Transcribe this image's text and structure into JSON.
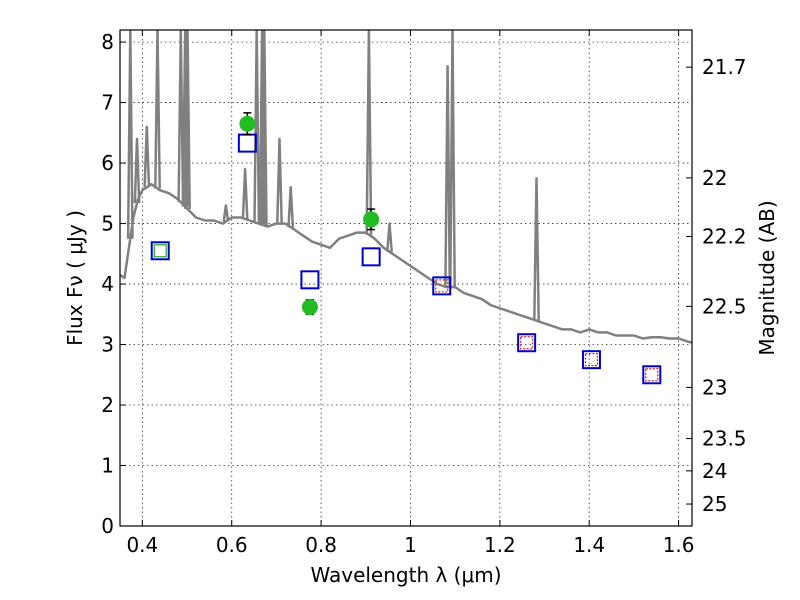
{
  "chart_data": {
    "type": "scatter",
    "xlabel": "Wavelength  λ (μm)",
    "ylabel": "Flux  Fν  ( μJy )",
    "ylabel_right": "Magnitude (AB)",
    "xlim": [
      0.35,
      1.63
    ],
    "ylim": [
      0,
      8.2
    ],
    "grid": true,
    "x_ticks": [
      "0.4",
      "0.6",
      "0.8",
      "1",
      "1.2",
      "1.4",
      "1.6"
    ],
    "y_ticks": [
      "0",
      "1",
      "2",
      "3",
      "4",
      "5",
      "6",
      "7",
      "8"
    ],
    "mag_ticks": [
      "21.7",
      "22",
      "22.2",
      "22.5",
      "23",
      "23.5",
      "24",
      "25"
    ],
    "colors": {
      "spectrum": "#808080",
      "observed": "#22bb22",
      "model_box": "#0000cc",
      "inner_green": "#22aa22",
      "inner_red": "#cc2222"
    },
    "series": [
      {
        "kind": "line",
        "x": [
          0.35,
          0.36,
          0.37,
          0.38,
          0.39,
          0.4,
          0.41,
          0.42,
          0.43,
          0.44,
          0.46,
          0.48,
          0.5,
          0.52,
          0.54,
          0.56,
          0.58,
          0.6,
          0.62,
          0.64,
          0.66,
          0.68,
          0.7,
          0.72,
          0.74,
          0.76,
          0.78,
          0.8,
          0.82,
          0.84,
          0.86,
          0.88,
          0.9,
          0.92,
          0.94,
          0.96,
          0.98,
          1.0,
          1.02,
          1.04,
          1.06,
          1.08,
          1.1,
          1.12,
          1.14,
          1.16,
          1.18,
          1.2,
          1.22,
          1.24,
          1.26,
          1.28,
          1.3,
          1.32,
          1.34,
          1.36,
          1.38,
          1.4,
          1.42,
          1.44,
          1.46,
          1.48,
          1.5,
          1.52,
          1.54,
          1.56,
          1.58,
          1.6,
          1.62,
          1.63
        ],
        "y": [
          4.15,
          4.1,
          4.6,
          5.1,
          5.4,
          5.55,
          5.6,
          5.65,
          5.6,
          5.55,
          5.5,
          5.4,
          5.25,
          5.1,
          5.05,
          5.05,
          5.0,
          5.1,
          5.1,
          5.05,
          5.0,
          4.95,
          5.0,
          5.0,
          4.9,
          4.8,
          4.7,
          4.65,
          4.6,
          4.75,
          4.8,
          4.85,
          4.85,
          4.75,
          4.6,
          4.5,
          4.4,
          4.3,
          4.2,
          4.1,
          4.0,
          3.95,
          3.95,
          3.85,
          3.8,
          3.75,
          3.65,
          3.6,
          3.55,
          3.5,
          3.45,
          3.4,
          3.35,
          3.3,
          3.25,
          3.25,
          3.2,
          3.25,
          3.2,
          3.2,
          3.15,
          3.15,
          3.15,
          3.1,
          3.12,
          3.12,
          3.1,
          3.1,
          3.05,
          3.03
        ]
      },
      {
        "kind": "emission_lines",
        "lines": [
          {
            "x": 0.373,
            "peak": 8.2
          },
          {
            "x": 0.388,
            "peak": 6.4
          },
          {
            "x": 0.41,
            "peak": 6.6
          },
          {
            "x": 0.434,
            "peak": 8.2
          },
          {
            "x": 0.486,
            "peak": 8.2
          },
          {
            "x": 0.496,
            "peak": 8.2
          },
          {
            "x": 0.501,
            "peak": 8.2
          },
          {
            "x": 0.587,
            "peak": 5.3
          },
          {
            "x": 0.63,
            "peak": 5.9
          },
          {
            "x": 0.656,
            "peak": 8.2
          },
          {
            "x": 0.668,
            "peak": 8.2
          },
          {
            "x": 0.673,
            "peak": 8.2
          },
          {
            "x": 0.707,
            "peak": 6.4
          },
          {
            "x": 0.732,
            "peak": 5.6
          },
          {
            "x": 0.907,
            "peak": 8.2
          },
          {
            "x": 0.953,
            "peak": 5.0
          },
          {
            "x": 1.083,
            "peak": 7.6
          },
          {
            "x": 1.094,
            "peak": 8.2
          },
          {
            "x": 1.282,
            "peak": 5.75
          }
        ]
      },
      {
        "kind": "points",
        "x": [
          0.635,
          0.775,
          0.912
        ],
        "y": [
          6.65,
          3.62,
          5.07
        ],
        "yerr": [
          0.18,
          0.12,
          0.17
        ]
      },
      {
        "kind": "model_boxes",
        "x": [
          0.44,
          0.635,
          0.775,
          0.912,
          1.07,
          1.26,
          1.405,
          1.54
        ],
        "y": [
          4.55,
          6.33,
          4.07,
          4.45,
          3.97,
          3.03,
          2.75,
          2.5
        ],
        "inner": [
          "green",
          "none",
          "none",
          "none",
          "red",
          "red",
          "red",
          "red"
        ]
      }
    ]
  }
}
